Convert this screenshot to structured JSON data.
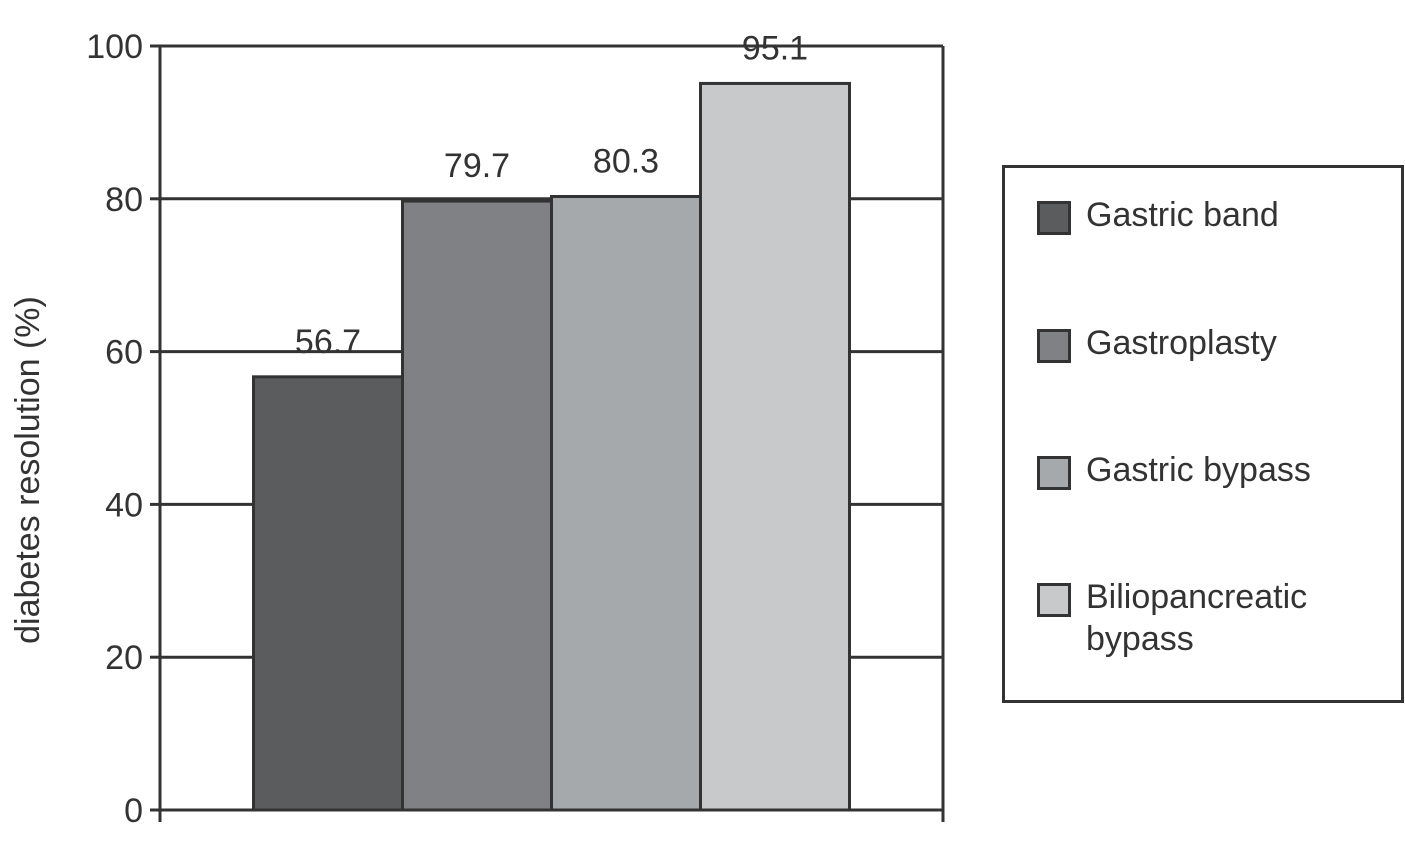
{
  "chart_data": {
    "type": "bar",
    "y_label": "diabetes resolution (%)",
    "categories": [
      null
    ],
    "series": [
      {
        "name": "Gastric band",
        "color": "#5b5c5e",
        "values": [
          56.7
        ]
      },
      {
        "name": "Gastroplasty",
        "color": "#808184",
        "values": [
          79.7
        ]
      },
      {
        "name": "Gastric bypass",
        "color": "#a6a9ac",
        "values": [
          80.3
        ]
      },
      {
        "name": "Biliopancreatic bypass",
        "color": "#c8c9cb",
        "values": [
          95.1
        ]
      }
    ],
    "ylim": [
      0,
      100
    ],
    "yticks": [
      0,
      20,
      40,
      60,
      80,
      100
    ],
    "grid": true,
    "legend": "right"
  }
}
